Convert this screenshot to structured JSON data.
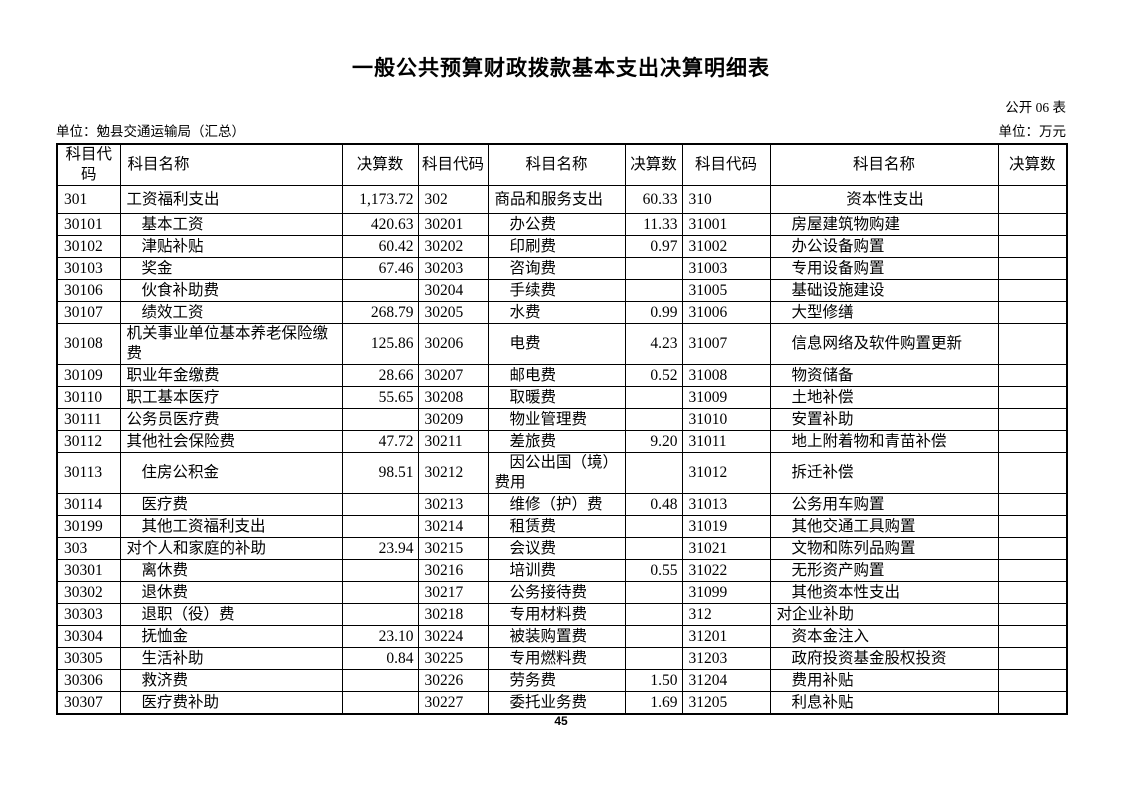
{
  "page": {
    "title": "一般公共预算财政拨款基本支出决算明细表",
    "table_code": "公开 06 表",
    "unit_left": "单位：勉县交通运输局（汇总）",
    "unit_right": "单位：万元",
    "page_number": "45"
  },
  "table": {
    "headers": [
      "科目代码",
      "科目名称",
      "决算数",
      "科目代码",
      "科目名称",
      "决算数",
      "科目代码",
      "科目名称",
      "决算数"
    ],
    "rows": [
      [
        {
          "v": "301"
        },
        {
          "v": "工资福利支出"
        },
        {
          "v": "1,173.72"
        },
        {
          "v": "302"
        },
        {
          "v": "商品和服务支出"
        },
        {
          "v": "60.33"
        },
        {
          "v": "310"
        },
        {
          "v": "资本性支出",
          "c": 1
        },
        {
          "v": ""
        }
      ],
      [
        {
          "v": "30101"
        },
        {
          "v": "基本工资",
          "ind": 1
        },
        {
          "v": "420.63"
        },
        {
          "v": "30201"
        },
        {
          "v": "办公费",
          "ind": 1
        },
        {
          "v": "11.33"
        },
        {
          "v": "31001"
        },
        {
          "v": "房屋建筑物购建",
          "ind": 1
        },
        {
          "v": ""
        }
      ],
      [
        {
          "v": "30102"
        },
        {
          "v": "津贴补贴",
          "ind": 1
        },
        {
          "v": "60.42"
        },
        {
          "v": "30202"
        },
        {
          "v": "印刷费",
          "ind": 1
        },
        {
          "v": "0.97"
        },
        {
          "v": "31002"
        },
        {
          "v": "办公设备购置",
          "ind": 1
        },
        {
          "v": ""
        }
      ],
      [
        {
          "v": "30103"
        },
        {
          "v": "奖金",
          "ind": 1
        },
        {
          "v": "67.46"
        },
        {
          "v": "30203"
        },
        {
          "v": "咨询费",
          "ind": 1
        },
        {
          "v": ""
        },
        {
          "v": "31003"
        },
        {
          "v": "专用设备购置",
          "ind": 1
        },
        {
          "v": ""
        }
      ],
      [
        {
          "v": "30106"
        },
        {
          "v": "伙食补助费",
          "ind": 1
        },
        {
          "v": ""
        },
        {
          "v": "30204"
        },
        {
          "v": "手续费",
          "ind": 1
        },
        {
          "v": ""
        },
        {
          "v": "31005"
        },
        {
          "v": "基础设施建设",
          "ind": 1
        },
        {
          "v": ""
        }
      ],
      [
        {
          "v": "30107"
        },
        {
          "v": "绩效工资",
          "ind": 1
        },
        {
          "v": "268.79"
        },
        {
          "v": "30205"
        },
        {
          "v": "水费",
          "ind": 1
        },
        {
          "v": "0.99"
        },
        {
          "v": "31006"
        },
        {
          "v": "大型修缮",
          "ind": 1
        },
        {
          "v": ""
        }
      ],
      [
        {
          "v": "30108"
        },
        {
          "v": "机关事业单位基本养老保险缴费"
        },
        {
          "v": "125.86"
        },
        {
          "v": "30206"
        },
        {
          "v": "电费",
          "ind": 1
        },
        {
          "v": "4.23"
        },
        {
          "v": "31007"
        },
        {
          "v": "信息网络及软件购置更新",
          "ind": 1
        },
        {
          "v": ""
        }
      ],
      [
        {
          "v": "30109"
        },
        {
          "v": "职业年金缴费"
        },
        {
          "v": "28.66"
        },
        {
          "v": "30207"
        },
        {
          "v": "邮电费",
          "ind": 1
        },
        {
          "v": "0.52"
        },
        {
          "v": "31008"
        },
        {
          "v": "物资储备",
          "ind": 1
        },
        {
          "v": ""
        }
      ],
      [
        {
          "v": "30110"
        },
        {
          "v": "职工基本医疗"
        },
        {
          "v": "55.65"
        },
        {
          "v": "30208"
        },
        {
          "v": "取暖费",
          "ind": 1
        },
        {
          "v": ""
        },
        {
          "v": "31009"
        },
        {
          "v": "土地补偿",
          "ind": 1
        },
        {
          "v": ""
        }
      ],
      [
        {
          "v": "30111"
        },
        {
          "v": "公务员医疗费"
        },
        {
          "v": ""
        },
        {
          "v": "30209"
        },
        {
          "v": "物业管理费",
          "ind": 1
        },
        {
          "v": ""
        },
        {
          "v": "31010"
        },
        {
          "v": "安置补助",
          "ind": 1
        },
        {
          "v": ""
        }
      ],
      [
        {
          "v": "30112"
        },
        {
          "v": "其他社会保险费"
        },
        {
          "v": "47.72"
        },
        {
          "v": "30211"
        },
        {
          "v": "差旅费",
          "ind": 1
        },
        {
          "v": "9.20"
        },
        {
          "v": "31011"
        },
        {
          "v": "地上附着物和青苗补偿",
          "ind": 1
        },
        {
          "v": ""
        }
      ],
      [
        {
          "v": "30113"
        },
        {
          "v": "住房公积金",
          "ind": 1
        },
        {
          "v": "98.51"
        },
        {
          "v": "30212"
        },
        {
          "v": "因公出国（境）费用",
          "ind": 1
        },
        {
          "v": ""
        },
        {
          "v": "31012"
        },
        {
          "v": "拆迁补偿",
          "ind": 1
        },
        {
          "v": ""
        }
      ],
      [
        {
          "v": "30114"
        },
        {
          "v": "医疗费",
          "ind": 1
        },
        {
          "v": ""
        },
        {
          "v": "30213"
        },
        {
          "v": "维修（护）费",
          "ind": 1
        },
        {
          "v": "0.48"
        },
        {
          "v": "31013"
        },
        {
          "v": "公务用车购置",
          "ind": 1
        },
        {
          "v": ""
        }
      ],
      [
        {
          "v": "30199"
        },
        {
          "v": "其他工资福利支出",
          "ind": 1
        },
        {
          "v": ""
        },
        {
          "v": "30214"
        },
        {
          "v": "租赁费",
          "ind": 1
        },
        {
          "v": ""
        },
        {
          "v": "31019"
        },
        {
          "v": "其他交通工具购置",
          "ind": 1
        },
        {
          "v": ""
        }
      ],
      [
        {
          "v": "303"
        },
        {
          "v": "对个人和家庭的补助"
        },
        {
          "v": "23.94"
        },
        {
          "v": "30215"
        },
        {
          "v": "会议费",
          "ind": 1
        },
        {
          "v": ""
        },
        {
          "v": "31021"
        },
        {
          "v": "文物和陈列品购置",
          "ind": 1
        },
        {
          "v": ""
        }
      ],
      [
        {
          "v": "30301"
        },
        {
          "v": "离休费",
          "ind": 1
        },
        {
          "v": ""
        },
        {
          "v": "30216"
        },
        {
          "v": "培训费",
          "ind": 1
        },
        {
          "v": "0.55"
        },
        {
          "v": "31022"
        },
        {
          "v": "无形资产购置",
          "ind": 1
        },
        {
          "v": ""
        }
      ],
      [
        {
          "v": "30302"
        },
        {
          "v": "退休费",
          "ind": 1
        },
        {
          "v": ""
        },
        {
          "v": "30217"
        },
        {
          "v": "公务接待费",
          "ind": 1
        },
        {
          "v": ""
        },
        {
          "v": "31099"
        },
        {
          "v": "其他资本性支出",
          "ind": 1
        },
        {
          "v": ""
        }
      ],
      [
        {
          "v": "30303"
        },
        {
          "v": "退职（役）费",
          "ind": 1
        },
        {
          "v": ""
        },
        {
          "v": "30218"
        },
        {
          "v": "专用材料费",
          "ind": 1
        },
        {
          "v": ""
        },
        {
          "v": "312"
        },
        {
          "v": "对企业补助"
        },
        {
          "v": ""
        }
      ],
      [
        {
          "v": "30304"
        },
        {
          "v": "抚恤金",
          "ind": 1
        },
        {
          "v": "23.10"
        },
        {
          "v": "30224"
        },
        {
          "v": "被装购置费",
          "ind": 1
        },
        {
          "v": ""
        },
        {
          "v": "31201"
        },
        {
          "v": "资本金注入",
          "ind": 1
        },
        {
          "v": ""
        }
      ],
      [
        {
          "v": "30305"
        },
        {
          "v": "生活补助",
          "ind": 1
        },
        {
          "v": "0.84"
        },
        {
          "v": "30225"
        },
        {
          "v": "专用燃料费",
          "ind": 1
        },
        {
          "v": ""
        },
        {
          "v": "31203"
        },
        {
          "v": "政府投资基金股权投资",
          "ind": 1
        },
        {
          "v": ""
        }
      ],
      [
        {
          "v": "30306"
        },
        {
          "v": "救济费",
          "ind": 1
        },
        {
          "v": ""
        },
        {
          "v": "30226"
        },
        {
          "v": "劳务费",
          "ind": 1
        },
        {
          "v": "1.50"
        },
        {
          "v": "31204"
        },
        {
          "v": "费用补贴",
          "ind": 1
        },
        {
          "v": ""
        }
      ],
      [
        {
          "v": "30307"
        },
        {
          "v": "医疗费补助",
          "ind": 1
        },
        {
          "v": ""
        },
        {
          "v": "30227"
        },
        {
          "v": "委托业务费",
          "ind": 1
        },
        {
          "v": "1.69"
        },
        {
          "v": "31205"
        },
        {
          "v": "利息补贴",
          "ind": 1
        },
        {
          "v": ""
        }
      ]
    ]
  }
}
